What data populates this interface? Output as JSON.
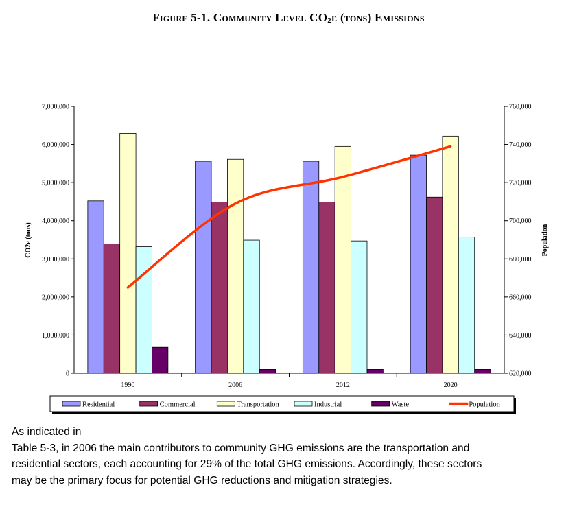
{
  "figure": {
    "title_prefix": "Figure 5-1.  Community Level CO",
    "title_sub": "2",
    "title_suffix": "e (tons) Emissions"
  },
  "chart_data": {
    "type": "bar",
    "categories": [
      "1990",
      "2006",
      "2012",
      "2020"
    ],
    "ylabel": "CO2e (tons)",
    "y2label": "Population",
    "ylim": [
      0,
      7000000
    ],
    "y2lim": [
      620000,
      760000
    ],
    "yticks": [
      "0",
      "1,000,000",
      "2,000,000",
      "3,000,000",
      "4,000,000",
      "5,000,000",
      "6,000,000",
      "7,000,000"
    ],
    "y2ticks": [
      "620,000",
      "640,000",
      "660,000",
      "680,000",
      "700,000",
      "720,000",
      "740,000",
      "760,000"
    ],
    "legend_position": "bottom",
    "series": [
      {
        "name": "Residential",
        "color": "#9999ff",
        "values": [
          4520000,
          5560000,
          5560000,
          5720000
        ]
      },
      {
        "name": "Commercial",
        "color": "#993366",
        "values": [
          3390000,
          4490000,
          4490000,
          4620000
        ]
      },
      {
        "name": "Transportation",
        "color": "#ffffcc",
        "values": [
          6290000,
          5610000,
          5950000,
          6220000
        ]
      },
      {
        "name": "Industrial",
        "color": "#ccffff",
        "values": [
          3320000,
          3490000,
          3470000,
          3570000
        ]
      },
      {
        "name": "Waste",
        "color": "#660066",
        "values": [
          680000,
          100000,
          100000,
          100000
        ]
      }
    ],
    "line_series": {
      "name": "Population",
      "color": "#ff3300",
      "axis": "secondary",
      "values": [
        665000,
        709000,
        723000,
        739000
      ]
    }
  },
  "text": {
    "lines": [
      "As indicated in",
      "Table 5-3, in 2006 the main contributors to community GHG emissions are the transportation and",
      "residential sectors, each accounting for 29% of the total GHG emissions.  Accordingly, these sectors",
      "may be the primary focus for potential GHG reductions and mitigation strategies."
    ]
  }
}
